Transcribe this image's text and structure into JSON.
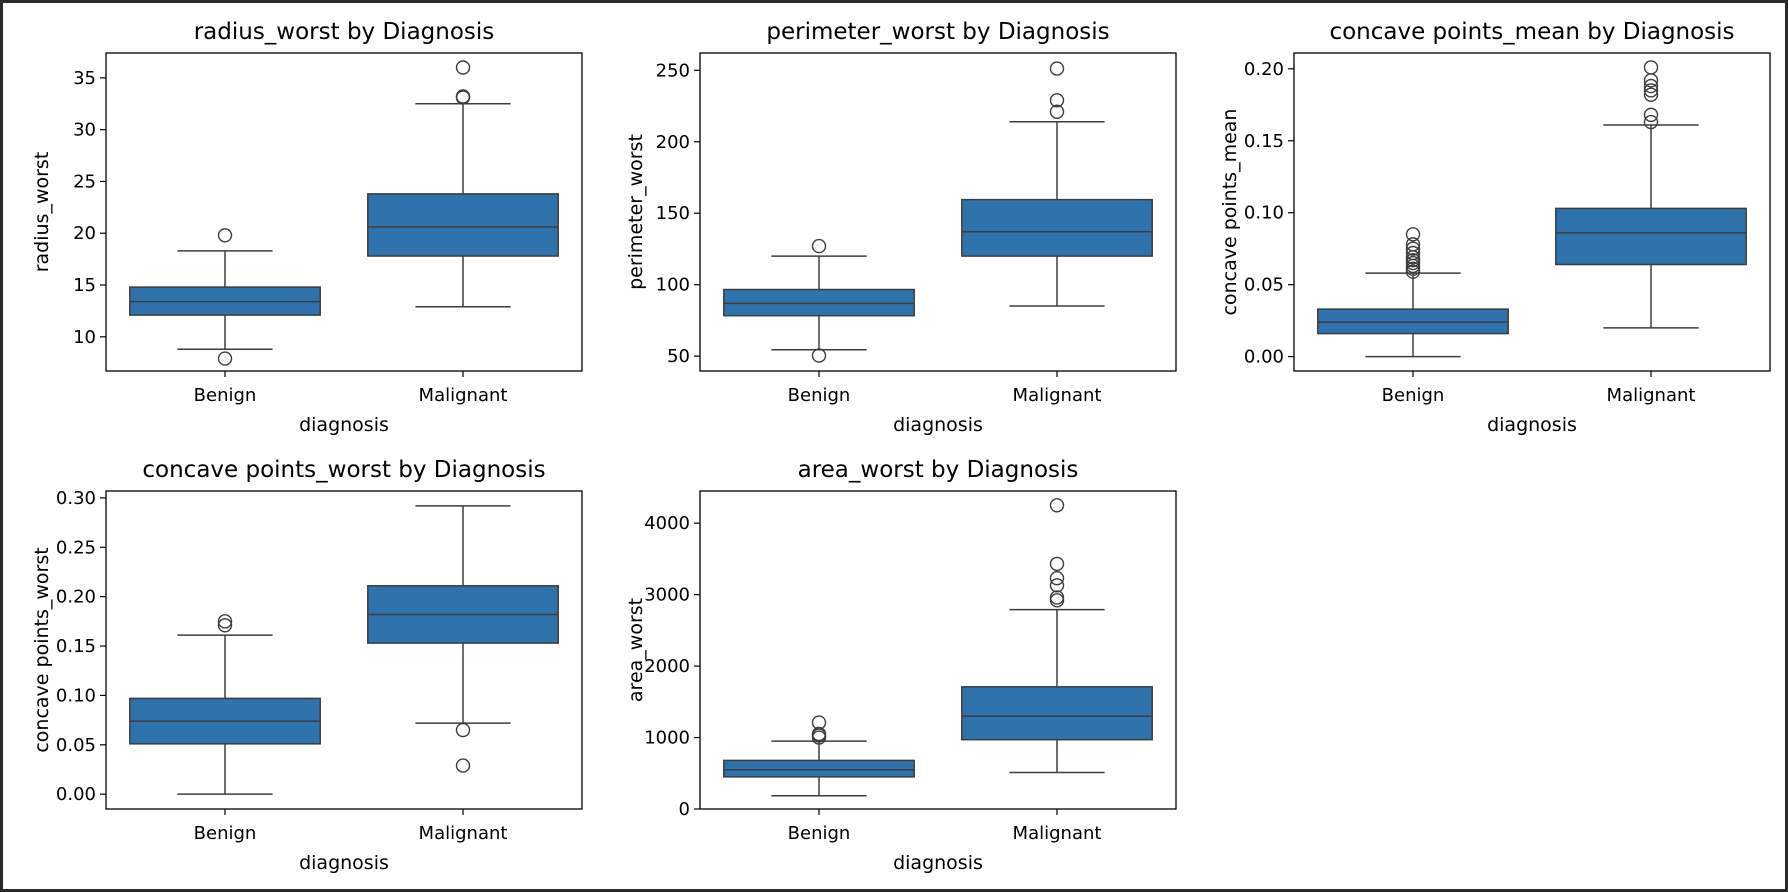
{
  "chart_data": [
    {
      "type": "box",
      "title": "radius_worst by Diagnosis",
      "xlabel": "diagnosis",
      "ylabel": "radius_worst",
      "categories": [
        "Benign",
        "Malignant"
      ],
      "ylim": [
        6.7,
        37.4
      ],
      "yticks": [
        10,
        15,
        20,
        25,
        30,
        35
      ],
      "ytick_labels": [
        "10",
        "15",
        "20",
        "25",
        "30",
        "35"
      ],
      "boxes": [
        {
          "whislo": 8.8,
          "q1": 12.1,
          "med": 13.4,
          "q3": 14.8,
          "whishi": 18.3,
          "fliers": [
            19.8,
            7.9
          ]
        },
        {
          "whislo": 12.9,
          "q1": 17.8,
          "med": 20.6,
          "q3": 23.8,
          "whishi": 32.5,
          "fliers": [
            33.1,
            33.2,
            36.0
          ]
        }
      ],
      "color": "#2e73ad"
    },
    {
      "type": "box",
      "title": "perimeter_worst by Diagnosis",
      "xlabel": "diagnosis",
      "ylabel": "perimeter_worst",
      "categories": [
        "Benign",
        "Malignant"
      ],
      "ylim": [
        39.6,
        262.1
      ],
      "yticks": [
        50,
        100,
        150,
        200,
        250
      ],
      "ytick_labels": [
        "50",
        "100",
        "150",
        "200",
        "250"
      ],
      "boxes": [
        {
          "whislo": 54.5,
          "q1": 78.3,
          "med": 86.9,
          "q3": 96.6,
          "whishi": 120.0,
          "fliers": [
            127.0,
            50.4
          ]
        },
        {
          "whislo": 85.1,
          "q1": 120.0,
          "med": 137.0,
          "q3": 159.5,
          "whishi": 214.0,
          "fliers": [
            221.0,
            229.0,
            251.2
          ]
        }
      ],
      "color": "#2e73ad"
    },
    {
      "type": "box",
      "title": "concave points_mean by Diagnosis",
      "xlabel": "diagnosis",
      "ylabel": "concave points_mean",
      "categories": [
        "Benign",
        "Malignant"
      ],
      "ylim": [
        -0.01,
        0.211
      ],
      "yticks": [
        0.0,
        0.05,
        0.1,
        0.15,
        0.2
      ],
      "ytick_labels": [
        "0.00",
        "0.05",
        "0.10",
        "0.15",
        "0.20"
      ],
      "boxes": [
        {
          "whislo": 0.0,
          "q1": 0.016,
          "med": 0.024,
          "q3": 0.033,
          "whishi": 0.058,
          "fliers": [
            0.059,
            0.061,
            0.063,
            0.065,
            0.067,
            0.069,
            0.072,
            0.075,
            0.078,
            0.085
          ]
        },
        {
          "whislo": 0.02,
          "q1": 0.064,
          "med": 0.086,
          "q3": 0.103,
          "whishi": 0.161,
          "fliers": [
            0.163,
            0.168,
            0.182,
            0.185,
            0.188,
            0.192,
            0.201
          ]
        }
      ],
      "color": "#2e73ad"
    },
    {
      "type": "box",
      "title": "concave points_worst by Diagnosis",
      "xlabel": "diagnosis",
      "ylabel": "concave points_worst",
      "categories": [
        "Benign",
        "Malignant"
      ],
      "ylim": [
        -0.015,
        0.307
      ],
      "yticks": [
        0.0,
        0.05,
        0.1,
        0.15,
        0.2,
        0.25,
        0.3
      ],
      "ytick_labels": [
        "0.00",
        "0.05",
        "0.10",
        "0.15",
        "0.20",
        "0.25",
        "0.30"
      ],
      "boxes": [
        {
          "whislo": 0.0,
          "q1": 0.051,
          "med": 0.074,
          "q3": 0.097,
          "whishi": 0.161,
          "fliers": [
            0.171,
            0.175
          ]
        },
        {
          "whislo": 0.072,
          "q1": 0.153,
          "med": 0.182,
          "q3": 0.211,
          "whishi": 0.292,
          "fliers": [
            0.065,
            0.029
          ]
        }
      ],
      "color": "#2e73ad"
    },
    {
      "type": "box",
      "title": "area_worst by Diagnosis",
      "xlabel": "diagnosis",
      "ylabel": "area_worst",
      "categories": [
        "Benign",
        "Malignant"
      ],
      "ylim": [
        0,
        4450
      ],
      "yticks": [
        0,
        1000,
        2000,
        3000,
        4000
      ],
      "ytick_labels": [
        "0",
        "1000",
        "2000",
        "3000",
        "4000"
      ],
      "boxes": [
        {
          "whislo": 185,
          "q1": 450,
          "med": 550,
          "q3": 680,
          "whishi": 950,
          "fliers": [
            1000,
            1030,
            1050,
            1210
          ]
        },
        {
          "whislo": 510,
          "q1": 970,
          "med": 1300,
          "q3": 1710,
          "whishi": 2790,
          "fliers": [
            2920,
            2960,
            3130,
            3230,
            3430,
            4250
          ]
        }
      ],
      "color": "#2e73ad"
    }
  ]
}
